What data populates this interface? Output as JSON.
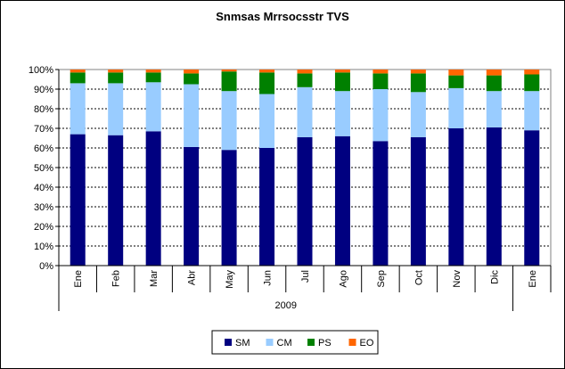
{
  "chart_data": {
    "type": "bar",
    "stacked": "percent",
    "title": "Snmsas Mrrsocsstr TVS",
    "categories": [
      "Ene",
      "Feb",
      "Mar",
      "Abr",
      "May",
      "Jun",
      "Jul",
      "Ago",
      "Sep",
      "Oct",
      "Nov",
      "Dic",
      "Ene"
    ],
    "group_label": "2009",
    "y_ticks": [
      "0%",
      "10%",
      "20%",
      "30%",
      "40%",
      "50%",
      "60%",
      "70%",
      "80%",
      "90%",
      "100%"
    ],
    "ylim": [
      0,
      100
    ],
    "grid": true,
    "legend_position": "bottom",
    "series": [
      {
        "name": "SM",
        "color": "#000080",
        "values": [
          67,
          66.5,
          68.5,
          60.5,
          59,
          60,
          65.5,
          66,
          63.5,
          65.5,
          70,
          70.5,
          69
        ]
      },
      {
        "name": "CM",
        "color": "#99ccff",
        "values": [
          26,
          26.5,
          25,
          32,
          30,
          27.5,
          25.5,
          23,
          26.5,
          23,
          20.5,
          18.5,
          20
        ]
      },
      {
        "name": "PS",
        "color": "#008000",
        "values": [
          5.5,
          5.5,
          5,
          5.5,
          10,
          11,
          7,
          9.5,
          8,
          9.5,
          6.5,
          8,
          8.5
        ]
      },
      {
        "name": "EO",
        "color": "#ff6600",
        "values": [
          1.5,
          1.5,
          1.5,
          2,
          1,
          1.5,
          2,
          1.5,
          2,
          2,
          3,
          3,
          2.5
        ]
      }
    ]
  }
}
